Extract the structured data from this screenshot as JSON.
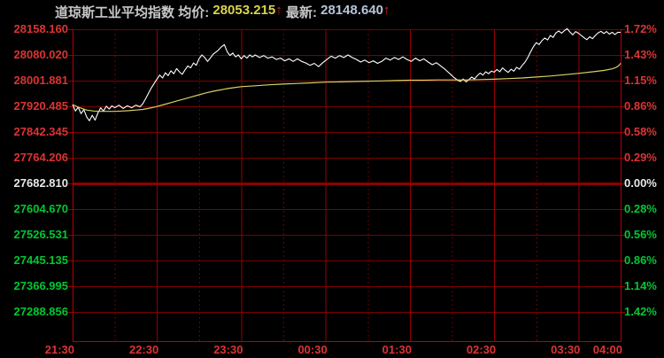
{
  "header": {
    "title": "道琼斯工业平均指数",
    "avg_label": "均价:",
    "avg_value": "28053.215",
    "avg_arrow": "↑",
    "last_label": "最新:",
    "last_value": "28148.640",
    "last_arrow": "↑"
  },
  "colors": {
    "background": "#000000",
    "red_label": "#dd3333",
    "green_label": "#00c832",
    "white_label": "#e8e8e8",
    "gray_text": "#c8c8c8",
    "yellow_value": "#d8d44e",
    "blue_value": "#b7c4da",
    "arrow_red": "#e02222",
    "grid_h": "#7d0000",
    "grid_v": "#960000",
    "grid_dotted": "#6e0000",
    "zero_line": "#8f0000",
    "border": "#b80000",
    "price_line": "#ffffff",
    "avg_line": "#d6d066"
  },
  "chart_data": {
    "type": "line",
    "title": "道琼斯工业平均指数 分时走势 (intraday)",
    "session": {
      "start": "21:30",
      "end": "04:00",
      "total_minutes": 390
    },
    "prev_close": 27682.81,
    "y_top_value": 28158.16,
    "grid": "on",
    "left_axis": [
      {
        "text": "28158.160",
        "color": "red_label"
      },
      {
        "text": "28080.020",
        "color": "red_label"
      },
      {
        "text": "28001.881",
        "color": "red_label"
      },
      {
        "text": "27920.485",
        "color": "red_label"
      },
      {
        "text": "27842.345",
        "color": "red_label"
      },
      {
        "text": "27764.206",
        "color": "red_label"
      },
      {
        "text": "27682.810",
        "color": "white_label"
      },
      {
        "text": "27604.670",
        "color": "green_label"
      },
      {
        "text": "27526.531",
        "color": "green_label"
      },
      {
        "text": "27445.135",
        "color": "green_label"
      },
      {
        "text": "27366.995",
        "color": "green_label"
      },
      {
        "text": "27288.856",
        "color": "green_label"
      }
    ],
    "right_axis": [
      {
        "text": "1.72%",
        "color": "red_label"
      },
      {
        "text": "1.43%",
        "color": "red_label"
      },
      {
        "text": "1.15%",
        "color": "red_label"
      },
      {
        "text": "0.86%",
        "color": "red_label"
      },
      {
        "text": "0.58%",
        "color": "red_label"
      },
      {
        "text": "0.29%",
        "color": "red_label"
      },
      {
        "text": "0.00%",
        "color": "white_label"
      },
      {
        "text": "0.28%",
        "color": "green_label"
      },
      {
        "text": "0.56%",
        "color": "green_label"
      },
      {
        "text": "0.86%",
        "color": "green_label"
      },
      {
        "text": "1.14%",
        "color": "green_label"
      },
      {
        "text": "1.42%",
        "color": "green_label"
      }
    ],
    "x_ticks": [
      {
        "label": "21:30",
        "min": 0
      },
      {
        "label": "22:30",
        "min": 60
      },
      {
        "label": "23:30",
        "min": 120
      },
      {
        "label": "00:30",
        "min": 180
      },
      {
        "label": "01:30",
        "min": 240
      },
      {
        "label": "02:30",
        "min": 300
      },
      {
        "label": "03:30",
        "min": 360
      },
      {
        "label": "04:00",
        "min": 390
      }
    ],
    "half_hour_dotted_min": [
      30,
      90,
      150,
      210,
      270,
      330
    ],
    "series": [
      {
        "name": "price",
        "color_key": "price_line",
        "points": [
          [
            0,
            27926
          ],
          [
            2,
            27906
          ],
          [
            4,
            27918
          ],
          [
            6,
            27898
          ],
          [
            8,
            27910
          ],
          [
            10,
            27888
          ],
          [
            12,
            27876
          ],
          [
            14,
            27893
          ],
          [
            16,
            27878
          ],
          [
            18,
            27900
          ],
          [
            20,
            27916
          ],
          [
            22,
            27906
          ],
          [
            24,
            27921
          ],
          [
            26,
            27912
          ],
          [
            28,
            27922
          ],
          [
            30,
            27916
          ],
          [
            33,
            27924
          ],
          [
            36,
            27914
          ],
          [
            39,
            27922
          ],
          [
            42,
            27916
          ],
          [
            45,
            27924
          ],
          [
            48,
            27919
          ],
          [
            50,
            27929
          ],
          [
            52,
            27944
          ],
          [
            54,
            27961
          ],
          [
            56,
            27977
          ],
          [
            58,
            27991
          ],
          [
            60,
            28004
          ],
          [
            62,
            28017
          ],
          [
            64,
            28008
          ],
          [
            66,
            28024
          ],
          [
            68,
            28015
          ],
          [
            70,
            28030
          ],
          [
            72,
            28021
          ],
          [
            74,
            28037
          ],
          [
            76,
            28027
          ],
          [
            78,
            28019
          ],
          [
            80,
            28033
          ],
          [
            82,
            28045
          ],
          [
            84,
            28039
          ],
          [
            86,
            28054
          ],
          [
            88,
            28047
          ],
          [
            90,
            28067
          ],
          [
            92,
            28079
          ],
          [
            94,
            28071
          ],
          [
            96,
            28059
          ],
          [
            98,
            28069
          ],
          [
            100,
            28081
          ],
          [
            103,
            28091
          ],
          [
            106,
            28104
          ],
          [
            108,
            28111
          ],
          [
            110,
            28089
          ],
          [
            112,
            28077
          ],
          [
            114,
            28085
          ],
          [
            116,
            28073
          ],
          [
            118,
            28079
          ],
          [
            120,
            28067
          ],
          [
            122,
            28077
          ],
          [
            124,
            28069
          ],
          [
            126,
            28079
          ],
          [
            128,
            28073
          ],
          [
            130,
            28079
          ],
          [
            133,
            28071
          ],
          [
            136,
            28077
          ],
          [
            139,
            28069
          ],
          [
            142,
            28073
          ],
          [
            145,
            28065
          ],
          [
            148,
            28069
          ],
          [
            151,
            28061
          ],
          [
            154,
            28067
          ],
          [
            157,
            28059
          ],
          [
            160,
            28067
          ],
          [
            163,
            28059
          ],
          [
            166,
            28054
          ],
          [
            169,
            28047
          ],
          [
            172,
            28053
          ],
          [
            175,
            28043
          ],
          [
            178,
            28055
          ],
          [
            181,
            28065
          ],
          [
            184,
            28075
          ],
          [
            187,
            28069
          ],
          [
            190,
            28077
          ],
          [
            193,
            28071
          ],
          [
            196,
            28079
          ],
          [
            199,
            28071
          ],
          [
            202,
            28065
          ],
          [
            205,
            28057
          ],
          [
            208,
            28063
          ],
          [
            211,
            28055
          ],
          [
            214,
            28061
          ],
          [
            217,
            28053
          ],
          [
            220,
            28059
          ],
          [
            223,
            28069
          ],
          [
            226,
            28063
          ],
          [
            229,
            28071
          ],
          [
            232,
            28065
          ],
          [
            235,
            28073
          ],
          [
            238,
            28065
          ],
          [
            241,
            28059
          ],
          [
            244,
            28069
          ],
          [
            247,
            28061
          ],
          [
            250,
            28067
          ],
          [
            253,
            28057
          ],
          [
            256,
            28049
          ],
          [
            259,
            28055
          ],
          [
            262,
            28045
          ],
          [
            265,
            28035
          ],
          [
            268,
            28023
          ],
          [
            271,
            28011
          ],
          [
            274,
            28001
          ],
          [
            276,
            27997
          ],
          [
            278,
            28005
          ],
          [
            280,
            27996
          ],
          [
            282,
            28003
          ],
          [
            284,
            28011
          ],
          [
            286,
            28005
          ],
          [
            288,
            28015
          ],
          [
            290,
            28023
          ],
          [
            292,
            28017
          ],
          [
            294,
            28027
          ],
          [
            296,
            28021
          ],
          [
            298,
            28029
          ],
          [
            300,
            28026
          ],
          [
            302,
            28034
          ],
          [
            304,
            28027
          ],
          [
            306,
            28039
          ],
          [
            308,
            28031
          ],
          [
            310,
            28025
          ],
          [
            312,
            28035
          ],
          [
            314,
            28029
          ],
          [
            316,
            28041
          ],
          [
            318,
            28035
          ],
          [
            320,
            28047
          ],
          [
            322,
            28057
          ],
          [
            324,
            28071
          ],
          [
            326,
            28089
          ],
          [
            328,
            28105
          ],
          [
            330,
            28117
          ],
          [
            332,
            28111
          ],
          [
            334,
            28123
          ],
          [
            336,
            28131
          ],
          [
            338,
            28125
          ],
          [
            340,
            28139
          ],
          [
            342,
            28133
          ],
          [
            344,
            28147
          ],
          [
            346,
            28153
          ],
          [
            348,
            28146
          ],
          [
            350,
            28154
          ],
          [
            352,
            28160
          ],
          [
            354,
            28149
          ],
          [
            356,
            28141
          ],
          [
            358,
            28151
          ],
          [
            360,
            28146
          ],
          [
            362,
            28139
          ],
          [
            364,
            28132
          ],
          [
            366,
            28126
          ],
          [
            368,
            28135
          ],
          [
            370,
            28129
          ],
          [
            372,
            28139
          ],
          [
            374,
            28147
          ],
          [
            376,
            28152
          ],
          [
            378,
            28145
          ],
          [
            380,
            28151
          ],
          [
            382,
            28143
          ],
          [
            384,
            28149
          ],
          [
            386,
            28142
          ],
          [
            388,
            28149
          ],
          [
            390,
            28148.64
          ]
        ]
      },
      {
        "name": "average",
        "color_key": "avg_line",
        "points": [
          [
            0,
            27926
          ],
          [
            5,
            27916
          ],
          [
            10,
            27909
          ],
          [
            15,
            27906
          ],
          [
            20,
            27905
          ],
          [
            25,
            27905
          ],
          [
            30,
            27905
          ],
          [
            35,
            27906
          ],
          [
            40,
            27907
          ],
          [
            45,
            27909
          ],
          [
            50,
            27911
          ],
          [
            55,
            27915
          ],
          [
            60,
            27920
          ],
          [
            65,
            27926
          ],
          [
            70,
            27932
          ],
          [
            75,
            27938
          ],
          [
            80,
            27944
          ],
          [
            85,
            27950
          ],
          [
            90,
            27956
          ],
          [
            95,
            27962
          ],
          [
            100,
            27967
          ],
          [
            105,
            27971
          ],
          [
            110,
            27975
          ],
          [
            115,
            27978
          ],
          [
            120,
            27981
          ],
          [
            130,
            27984
          ],
          [
            140,
            27987
          ],
          [
            150,
            27989
          ],
          [
            160,
            27991
          ],
          [
            170,
            27993
          ],
          [
            180,
            27995
          ],
          [
            190,
            27996
          ],
          [
            200,
            27997
          ],
          [
            210,
            27998
          ],
          [
            220,
            27999
          ],
          [
            230,
            28000
          ],
          [
            240,
            28001
          ],
          [
            250,
            28001
          ],
          [
            260,
            28002
          ],
          [
            270,
            28002
          ],
          [
            280,
            28002
          ],
          [
            290,
            28003
          ],
          [
            300,
            28004
          ],
          [
            310,
            28006
          ],
          [
            320,
            28008
          ],
          [
            330,
            28011
          ],
          [
            340,
            28014
          ],
          [
            350,
            28018
          ],
          [
            360,
            28022
          ],
          [
            370,
            28027
          ],
          [
            378,
            28031
          ],
          [
            384,
            28036
          ],
          [
            387,
            28041
          ],
          [
            389,
            28047
          ],
          [
            390,
            28053.215
          ]
        ]
      }
    ]
  }
}
